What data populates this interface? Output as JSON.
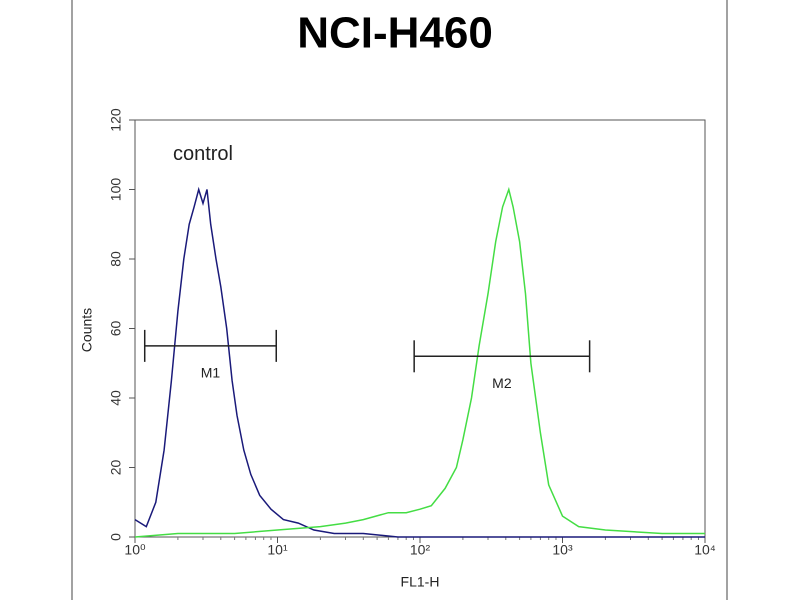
{
  "chart_data": {
    "type": "line",
    "title": "NCI-H460",
    "x_label": "FL1-H",
    "y_label": "Counts",
    "xscale": "log",
    "xlim": [
      1,
      10000
    ],
    "ylim": [
      0,
      120
    ],
    "xticks": [
      {
        "value": 1,
        "label": "10⁰"
      },
      {
        "value": 10,
        "label": "10¹"
      },
      {
        "value": 100,
        "label": "10²"
      },
      {
        "value": 1000,
        "label": "10³"
      },
      {
        "value": 10000,
        "label": "10⁴"
      }
    ],
    "yticks": [
      0,
      20,
      40,
      60,
      80,
      100,
      120
    ],
    "annotations": [
      {
        "text": "control",
        "x": 3,
        "y": 110
      }
    ],
    "markers": [
      {
        "label": "M1",
        "x_start": 1.17,
        "x_end": 9.8,
        "y": 55
      },
      {
        "label": "M2",
        "x_start": 91,
        "x_end": 1550,
        "y": 52
      }
    ],
    "series": [
      {
        "color": "#1a1a7a",
        "x": [
          1,
          1.2,
          1.4,
          1.6,
          1.8,
          2,
          2.2,
          2.4,
          2.6,
          2.8,
          3,
          3.2,
          3.4,
          3.7,
          4,
          4.4,
          4.8,
          5.2,
          5.8,
          6.5,
          7.5,
          9,
          11,
          14,
          18,
          25,
          40,
          70,
          150,
          500,
          2000,
          10000
        ],
        "values": [
          5,
          3,
          10,
          25,
          45,
          65,
          80,
          90,
          95,
          100,
          96,
          100,
          90,
          80,
          72,
          60,
          45,
          35,
          25,
          18,
          12,
          8,
          5,
          4,
          2,
          1,
          1,
          0,
          0,
          0,
          0,
          0
        ]
      },
      {
        "color": "#44dd44",
        "x": [
          1,
          2,
          5,
          10,
          20,
          30,
          40,
          60,
          80,
          100,
          120,
          150,
          180,
          200,
          230,
          260,
          300,
          340,
          380,
          420,
          450,
          500,
          550,
          600,
          700,
          800,
          1000,
          1300,
          2000,
          5000,
          10000
        ],
        "values": [
          0,
          1,
          1,
          2,
          3,
          4,
          5,
          7,
          7,
          8,
          9,
          14,
          20,
          28,
          40,
          55,
          70,
          85,
          95,
          100,
          95,
          85,
          70,
          50,
          30,
          15,
          6,
          3,
          2,
          1,
          1
        ]
      }
    ]
  }
}
